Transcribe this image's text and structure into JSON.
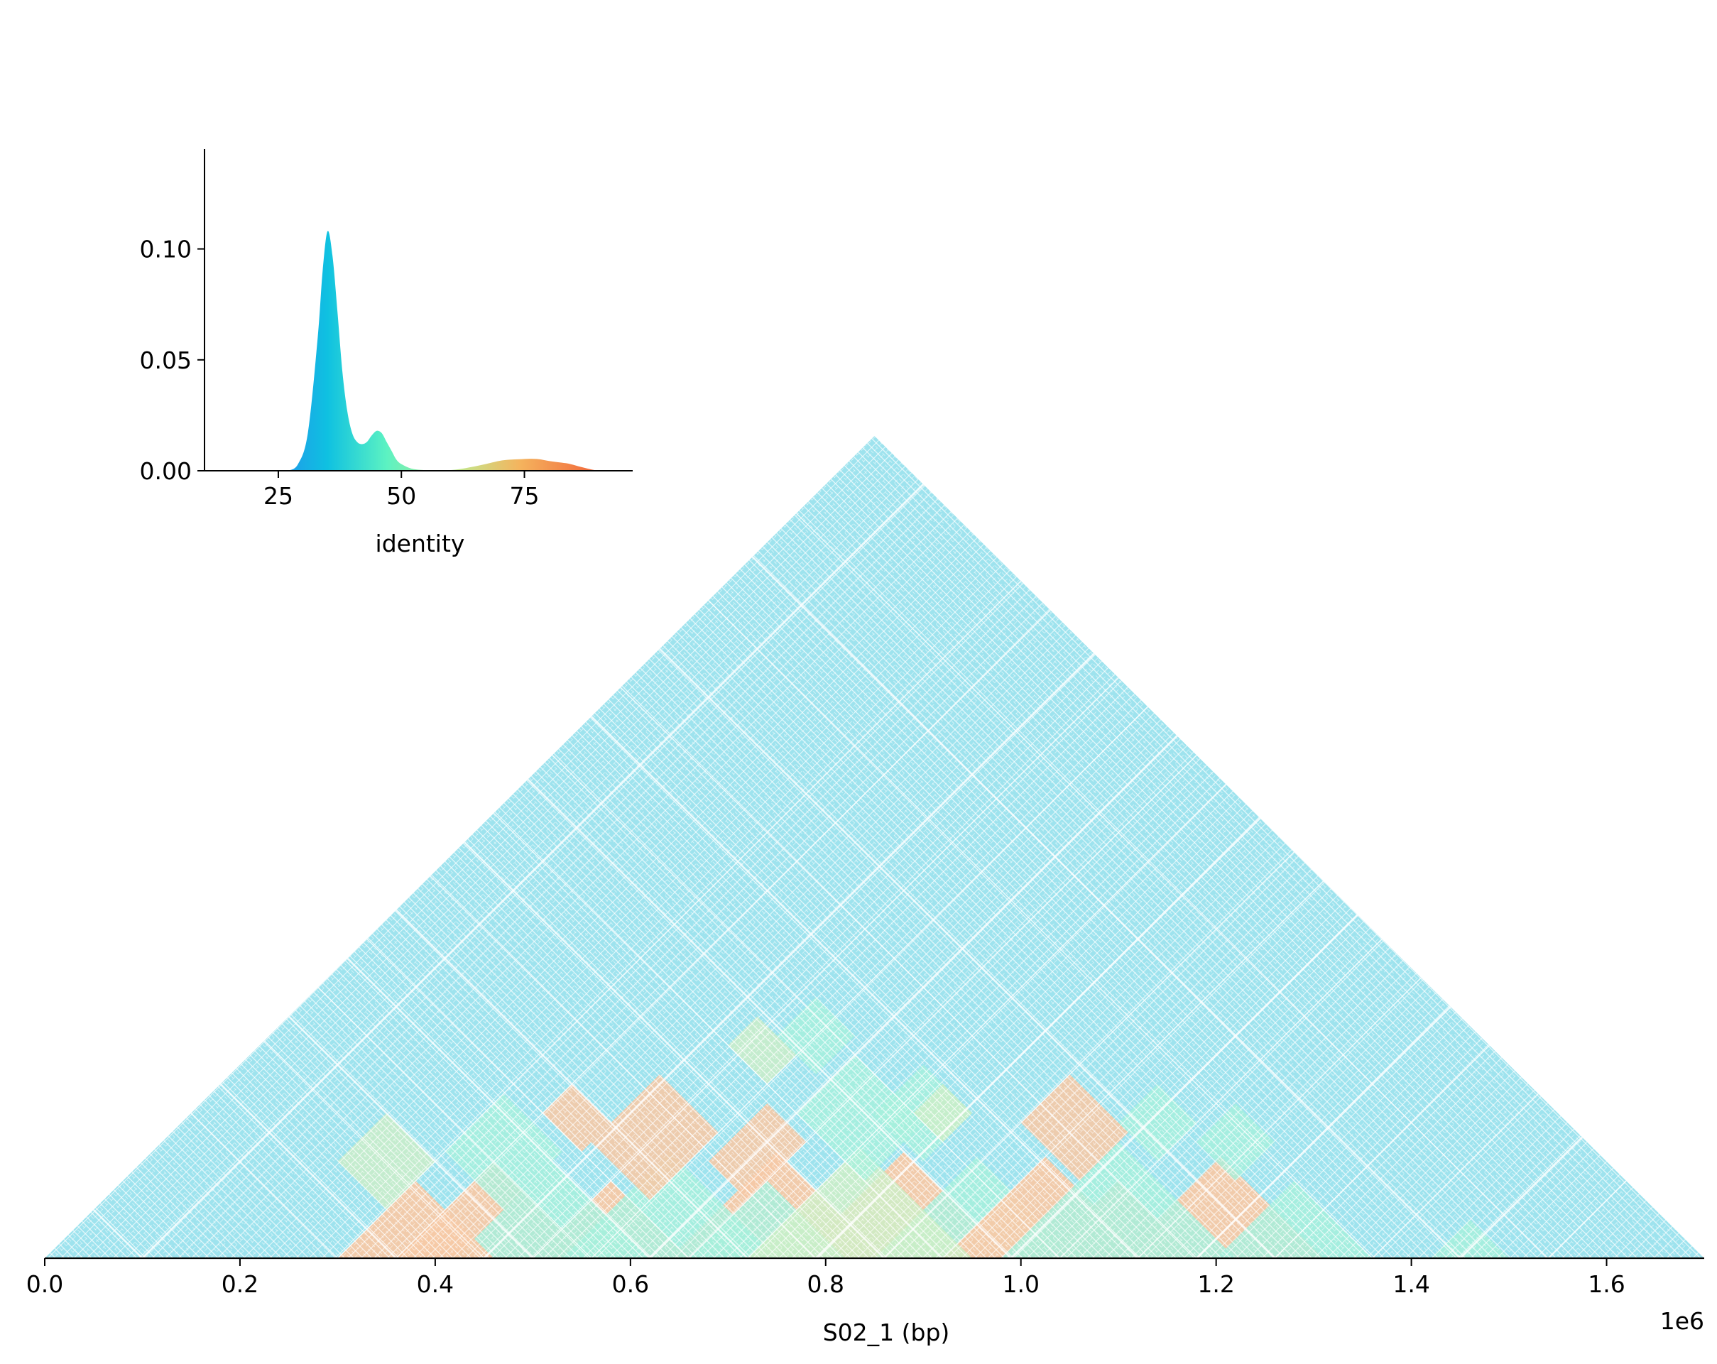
{
  "chart_data": [
    {
      "type": "heatmap",
      "subtype": "self-identity-triangle",
      "xlabel": "S02_1 (bp)",
      "x_offset_label": "1e6",
      "xlim": [
        0,
        1.7
      ],
      "x_ticks": [
        0.0,
        0.2,
        0.4,
        0.6,
        0.8,
        1.0,
        1.2,
        1.4,
        1.6
      ],
      "x_tick_labels": [
        "0.0",
        "0.2",
        "0.4",
        "0.6",
        "0.8",
        "1.0",
        "1.2",
        "1.4",
        "1.6"
      ],
      "apex_x": 0.85,
      "identity_colors": {
        "low": "#9ee3ee",
        "mid": "#a6f0dc",
        "mid_high": "#cdeec6",
        "high": "#f5c9a6",
        "highest": "#f3ad8c",
        "background": "#ffffff"
      },
      "high_identity_blocks": [
        {
          "start": 0.77,
          "end": 0.99,
          "level": "high"
        },
        {
          "start": 0.64,
          "end": 0.86,
          "level": "high"
        },
        {
          "start": 0.5,
          "end": 0.66,
          "level": "high"
        },
        {
          "start": 0.36,
          "end": 0.56,
          "level": "high"
        },
        {
          "start": 0.53,
          "end": 0.75,
          "level": "mid"
        },
        {
          "start": 0.66,
          "end": 0.82,
          "level": "mid"
        },
        {
          "start": 0.85,
          "end": 1.06,
          "level": "mid"
        },
        {
          "start": 0.92,
          "end": 1.13,
          "level": "high"
        },
        {
          "start": 1.02,
          "end": 1.18,
          "level": "high"
        },
        {
          "start": 1.1,
          "end": 1.31,
          "level": "high"
        },
        {
          "start": 1.2,
          "end": 1.36,
          "level": "mid"
        },
        {
          "start": 0.98,
          "end": 1.22,
          "level": "mid"
        },
        {
          "start": 0.42,
          "end": 0.62,
          "level": "mid"
        },
        {
          "start": 0.3,
          "end": 0.46,
          "level": "high"
        },
        {
          "start": 1.42,
          "end": 1.5,
          "level": "mid"
        },
        {
          "start": 0.72,
          "end": 0.95,
          "level": "mid_high"
        }
      ]
    },
    {
      "type": "area",
      "subtype": "density",
      "xlabel": "identity",
      "ylabel": "",
      "xlim": [
        10,
        97
      ],
      "ylim": [
        0,
        0.145
      ],
      "x_ticks": [
        25,
        50,
        75
      ],
      "x_tick_labels": [
        "25",
        "50",
        "75"
      ],
      "y_ticks": [
        0.0,
        0.05,
        0.1
      ],
      "y_tick_labels": [
        "0.00",
        "0.05",
        "0.10"
      ],
      "x": [
        27,
        29,
        31,
        33,
        34,
        35,
        36,
        37,
        38,
        39,
        40,
        41,
        42,
        43,
        44,
        45,
        46,
        47,
        48,
        49,
        50,
        52,
        54,
        56,
        58,
        60,
        62,
        64,
        66,
        68,
        70,
        72,
        74,
        76,
        78,
        80,
        82,
        84,
        86,
        88,
        90
      ],
      "y": [
        0.0,
        0.003,
        0.017,
        0.06,
        0.09,
        0.108,
        0.097,
        0.072,
        0.045,
        0.027,
        0.017,
        0.013,
        0.012,
        0.013,
        0.016,
        0.018,
        0.017,
        0.013,
        0.009,
        0.005,
        0.003,
        0.001,
        0.0004,
        0.0002,
        0.0002,
        0.0003,
        0.0008,
        0.0016,
        0.0025,
        0.0035,
        0.0045,
        0.005,
        0.0052,
        0.0054,
        0.0052,
        0.0044,
        0.0038,
        0.0032,
        0.002,
        0.0009,
        0.0
      ],
      "gradient_stops": [
        {
          "x": 27,
          "color": "#1e9ee8"
        },
        {
          "x": 35,
          "color": "#0fc1e1"
        },
        {
          "x": 47,
          "color": "#5cf2c2"
        },
        {
          "x": 62,
          "color": "#c4e68c"
        },
        {
          "x": 74,
          "color": "#f4b45e"
        },
        {
          "x": 90,
          "color": "#f2663a"
        }
      ]
    }
  ]
}
